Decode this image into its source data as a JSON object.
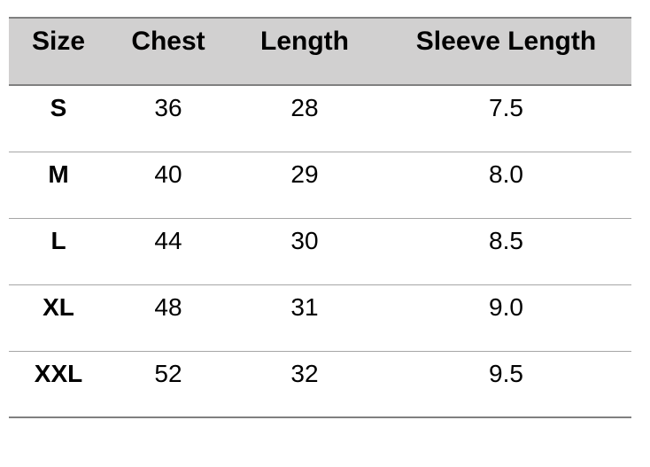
{
  "table": {
    "columns": [
      {
        "key": "size",
        "label": "Size"
      },
      {
        "key": "chest",
        "label": "Chest"
      },
      {
        "key": "length",
        "label": "Length"
      },
      {
        "key": "sleeve",
        "label": "Sleeve Length"
      }
    ],
    "rows": [
      {
        "size": "S",
        "chest": "36",
        "length": "28",
        "sleeve": "7.5"
      },
      {
        "size": "M",
        "chest": "40",
        "length": "29",
        "sleeve": "8.0"
      },
      {
        "size": "L",
        "chest": "44",
        "length": "30",
        "sleeve": "8.5"
      },
      {
        "size": "XL",
        "chest": "48",
        "length": "31",
        "sleeve": "9.0"
      },
      {
        "size": "XXL",
        "chest": "52",
        "length": "32",
        "sleeve": "9.5"
      }
    ]
  },
  "colors": {
    "header_bg": "#d1d0d0",
    "border_dark": "#808080",
    "border_light": "#a6a6a6",
    "text_color": "#000000"
  }
}
